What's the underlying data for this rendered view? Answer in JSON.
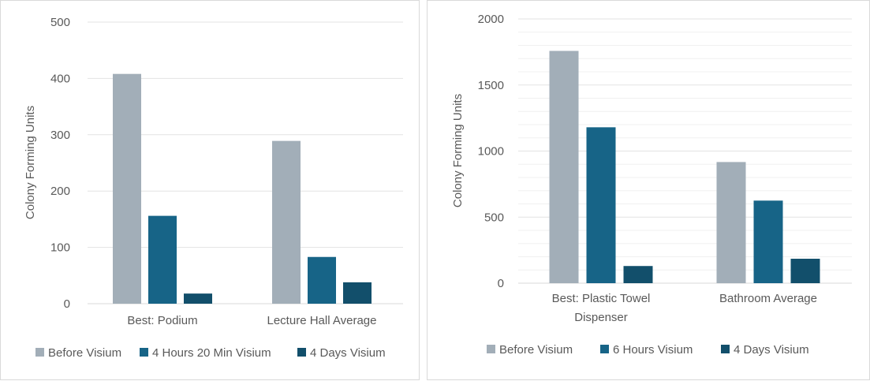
{
  "chart_data": [
    {
      "type": "bar",
      "ylabel": "Colony Forming Units",
      "ylim": [
        0,
        500
      ],
      "yticks": [
        "0",
        "100",
        "200",
        "300",
        "400",
        "500"
      ],
      "gridlines": true,
      "legend_position": "bottom",
      "categories": [
        "Best: Podium",
        "Lecture Hall Average"
      ],
      "series": [
        {
          "name": "Before Visium",
          "color": "#a2aeb8",
          "values": [
            408,
            289
          ]
        },
        {
          "name": "4 Hours 20 Min Visium",
          "color": "#176487",
          "values": [
            156,
            83
          ]
        },
        {
          "name": "4 Days Visium",
          "color": "#124f6b",
          "values": [
            18,
            38
          ]
        }
      ]
    },
    {
      "type": "bar",
      "ylabel": "Colony Forming Units",
      "ylim": [
        0,
        2000
      ],
      "yticks": [
        "0",
        "500",
        "1000",
        "1500",
        "2000"
      ],
      "gridlines": true,
      "minor_gridlines": true,
      "legend_position": "bottom",
      "categories": [
        [
          "Best: Plastic Towel",
          "Dispenser"
        ],
        [
          "Bathroom Average"
        ]
      ],
      "series": [
        {
          "name": "Before Visium",
          "color": "#a2aeb8",
          "values": [
            1758,
            917
          ]
        },
        {
          "name": "6 Hours Visium",
          "color": "#176487",
          "values": [
            1180,
            625
          ]
        },
        {
          "name": "4 Days Visium",
          "color": "#124f6b",
          "values": [
            130,
            185
          ]
        }
      ]
    }
  ]
}
